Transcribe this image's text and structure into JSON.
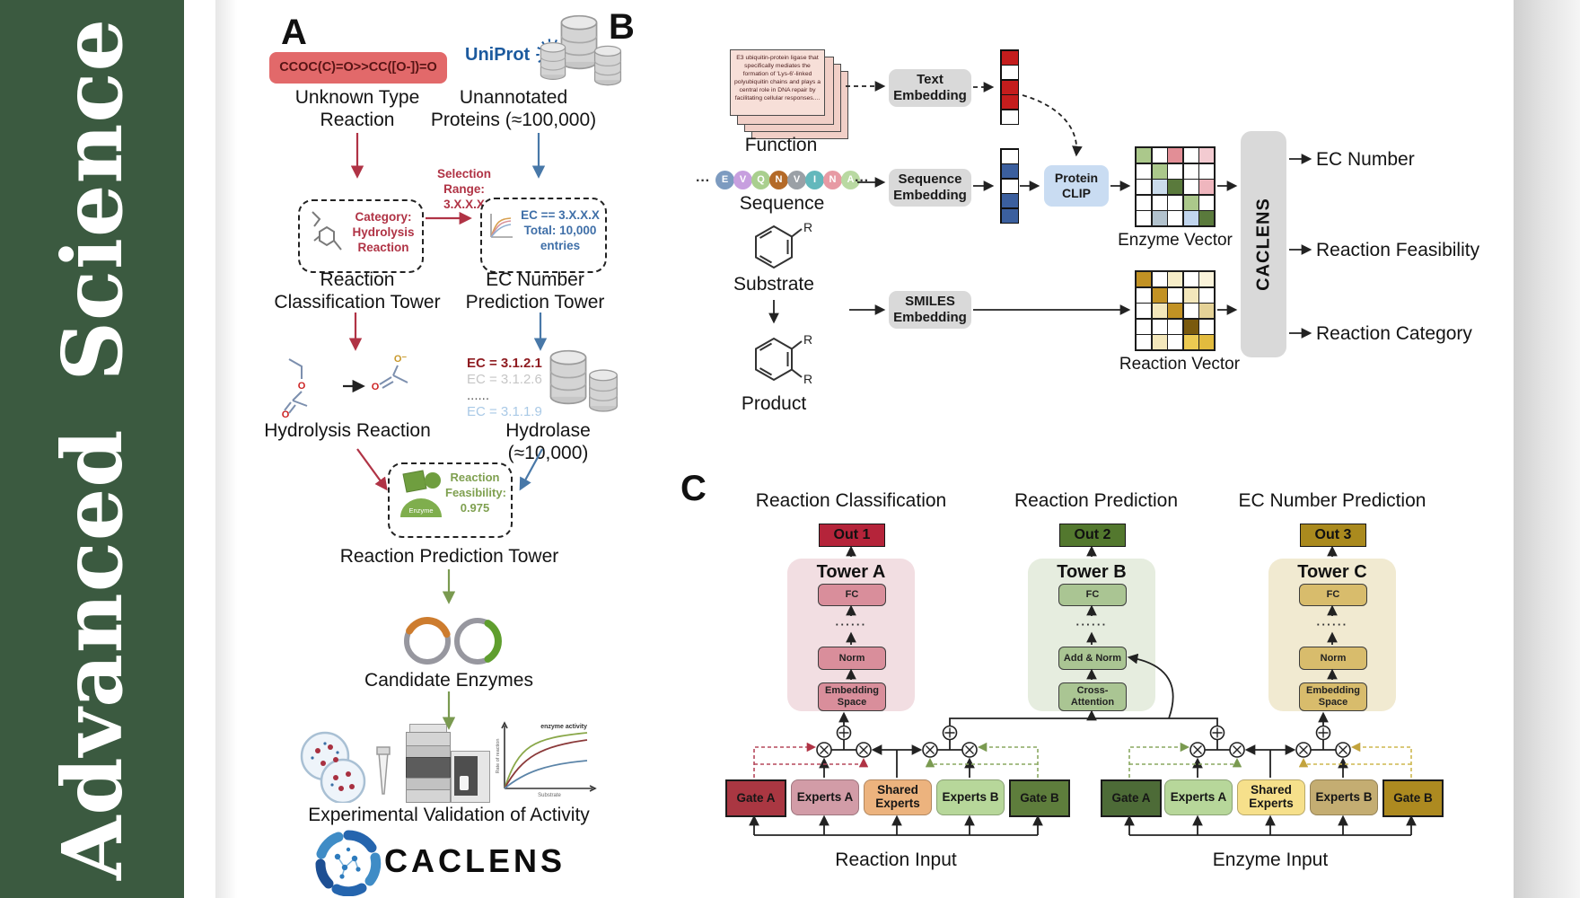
{
  "journal": {
    "sidebar_text": "Advanced  Science"
  },
  "colors": {
    "sidebar_green": "#3b5a40",
    "smiles_red": "#e2696a",
    "arrow_red": "#b03345",
    "arrow_blue": "#4878a8",
    "arrow_green": "#7a9a50",
    "uniprot_blue": "#1c5a9e",
    "clip_blue": "#c9dcf2",
    "embed_gray": "#d9d9d9",
    "towerA_bg": "#f2dee2",
    "towerA_box": "#d98e9b",
    "out1": "#b5243a",
    "towerB_bg": "#e6eddf",
    "towerB_box": "#aac593",
    "out2": "#53782e",
    "towerC_bg": "#f1ead1",
    "towerC_box": "#d8bc6c",
    "out3": "#aa8a1e",
    "gateA_left": "#aa3742",
    "expertsA_left": "#d29ca7",
    "shared_left": "#ecb37e",
    "expertsB_left": "#b7d79a",
    "gateB_left": "#5e7d3c",
    "gateA_right": "#4d6b37",
    "expertsA_right": "#b7d79a",
    "shared_right": "#f6e08b",
    "expertsB_right": "#c4ad72",
    "gateB_right": "#ad8a20"
  },
  "panelA": {
    "label": "A",
    "smiles": "CCOC(C)=O>>CC([O-])=O",
    "unknown_type": "Unknown Type\nReaction",
    "uniprot": "UniProt",
    "unannotated": "Unannotated\nProteins (≈100,000)",
    "category_box": "Category:\nHydrolysis\nReaction",
    "selection_range": "Selection\nRange:\n3.X.X.X",
    "ec_box": "EC == 3.X.X.X\nTotal: 10,000\nentries",
    "classification_tower": "Reaction\nClassification Tower",
    "ec_tower": "EC Number\nPrediction Tower",
    "hydrolysis_reaction": "Hydrolysis Reaction",
    "ec_list": [
      {
        "text": "EC = 3.1.2.1",
        "color": "#8f1d22"
      },
      {
        "text": "EC = 3.1.2.6",
        "color": "#c6c6c6"
      },
      {
        "text": "......",
        "color": "#555555"
      },
      {
        "text": "EC = 3.1.1.9",
        "color": "#a9c9e6"
      }
    ],
    "hydrolase": "Hydrolase (≈10,000)",
    "enzyme_badge": "Enzyme",
    "feasibility_box": "Reaction\nFeasibility:\n0.975",
    "prediction_tower": "Reaction Prediction Tower",
    "candidate_enzymes": "Candidate Enzymes",
    "experimental": "Experimental Validation of Activity",
    "logo_text": "CACLENS",
    "minichart": {
      "annotation": "enzyme activity",
      "ylabel": "Rate of reaction",
      "xlabel": "Substrate"
    }
  },
  "panelB": {
    "label": "B",
    "function_card": "E3 ubiquitin-protein ligase that specifically mediates the formation of 'Lys-6'-linked polyubiquitin chains and plays a central role in DNA repair by facilitating cellular responses....",
    "function_label": "Function",
    "dots_left": "···",
    "dots_right": "···",
    "sequence_label": "Sequence",
    "residues": [
      {
        "l": "E",
        "c": "#7d9bc0"
      },
      {
        "l": "V",
        "c": "#c79fdf"
      },
      {
        "l": "Q",
        "c": "#a9cf8e"
      },
      {
        "l": "N",
        "c": "#b46a28"
      },
      {
        "l": "V",
        "c": "#9aa0a6"
      },
      {
        "l": "I",
        "c": "#63b8bc"
      },
      {
        "l": "N",
        "c": "#e79aa4"
      },
      {
        "l": "A",
        "c": "#b9d9a2"
      }
    ],
    "substrate_label": "Substrate",
    "product_label": "Product",
    "r_label": "R",
    "text_embedding": "Text\nEmbedding",
    "sequence_embedding": "Sequence\nEmbedding",
    "smiles_embedding": "SMILES\nEmbedding",
    "protein_clip": "Protein\nCLIP",
    "enzyme_vector_label": "Enzyme Vector",
    "reaction_vector_label": "Reaction Vector",
    "caclens_bar": "CACLENS",
    "outputs": [
      "EC Number",
      "Reaction Feasibility",
      "Reaction Category"
    ],
    "grids": {
      "text_vector": [
        "#c41d1d",
        "#ffffff",
        "#c41d1d",
        "#c41d1d",
        "#ffffff"
      ],
      "seq_vector": [
        "#ffffff",
        "#3b5f9e",
        "#ffffff",
        "#3b5f9e",
        "#3b5f9e"
      ],
      "enzyme": [
        "#abc88b",
        "#ffffff",
        "#e28e96",
        "#ffffff",
        "#f3cbd1",
        "#ffffff",
        "#abc88b",
        "#ffffff",
        "#ffffff",
        "#ffffff",
        "#ffffff",
        "#cbdcec",
        "#5a7a3c",
        "#ffffff",
        "#efb6be",
        "#ffffff",
        "#ffffff",
        "#ffffff",
        "#abc88b",
        "#ffffff",
        "#ffffff",
        "#b2c2cd",
        "#ffffff",
        "#c2d6ee",
        "#5a7a3c"
      ],
      "reaction": [
        "#c29224",
        "#ffffff",
        "#f6edc8",
        "#ffffff",
        "#faf3da",
        "#ffffff",
        "#c29224",
        "#ffffff",
        "#f3e7bb",
        "#ffffff",
        "#ffffff",
        "#f3e7bb",
        "#c29224",
        "#ffffff",
        "#e5d297",
        "#ffffff",
        "#ffffff",
        "#ffffff",
        "#7a5a0e",
        "#ffffff",
        "#ffffff",
        "#f3e7bb",
        "#ffffff",
        "#ecca52",
        "#e2bb3e"
      ]
    }
  },
  "panelC": {
    "label": "C",
    "columns": [
      {
        "header": "Reaction Classification",
        "out": "Out 1",
        "tower": "Tower A",
        "top": "FC",
        "dots": "······",
        "mid": "Norm",
        "bottom": "Embedding\nSpace"
      },
      {
        "header": "Reaction Prediction",
        "out": "Out 2",
        "tower": "Tower B",
        "top": "FC",
        "dots": "······",
        "mid": "Add & Norm",
        "bottom": "Cross-\nAttention"
      },
      {
        "header": "EC Number Prediction",
        "out": "Out 3",
        "tower": "Tower C",
        "top": "FC",
        "dots": "······",
        "mid": "Norm",
        "bottom": "Embedding\nSpace"
      }
    ],
    "moe": [
      {
        "gate_a": "Gate A",
        "experts_a": "Experts A",
        "shared": "Shared\nExperts",
        "experts_b": "Experts B",
        "gate_b": "Gate B",
        "input": "Reaction Input"
      },
      {
        "gate_a": "Gate A",
        "experts_a": "Experts A",
        "shared": "Shared\nExperts",
        "experts_b": "Experts B",
        "gate_b": "Gate B",
        "input": "Enzyme Input"
      }
    ]
  }
}
